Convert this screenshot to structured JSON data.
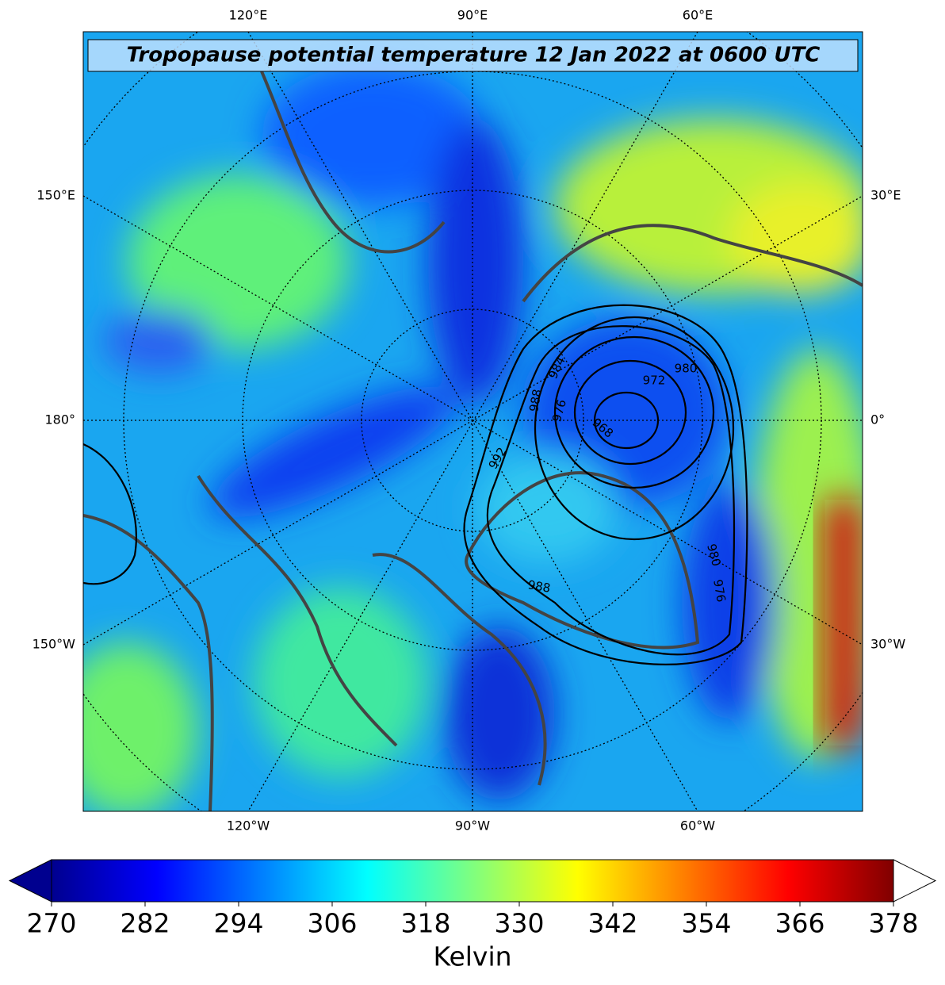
{
  "title": "Tropopause potential temperature 12 Jan 2022 at 0600 UTC",
  "lon_labels": {
    "top": [
      "120°E",
      "90°E",
      "60°E"
    ],
    "bottom": [
      "120°W",
      "90°W",
      "60°W"
    ],
    "left": [
      "150°E",
      "180°",
      "150°W"
    ],
    "right": [
      "30°E",
      "0°",
      "30°W"
    ]
  },
  "contour_labels": [
    "992",
    "988",
    "984",
    "980",
    "976",
    "972",
    "968",
    "988",
    "980",
    "976"
  ],
  "colorbar": {
    "range": [
      270,
      378
    ],
    "ticks": [
      270,
      282,
      294,
      306,
      318,
      330,
      342,
      354,
      366,
      378
    ],
    "label": "Kelvin"
  }
}
